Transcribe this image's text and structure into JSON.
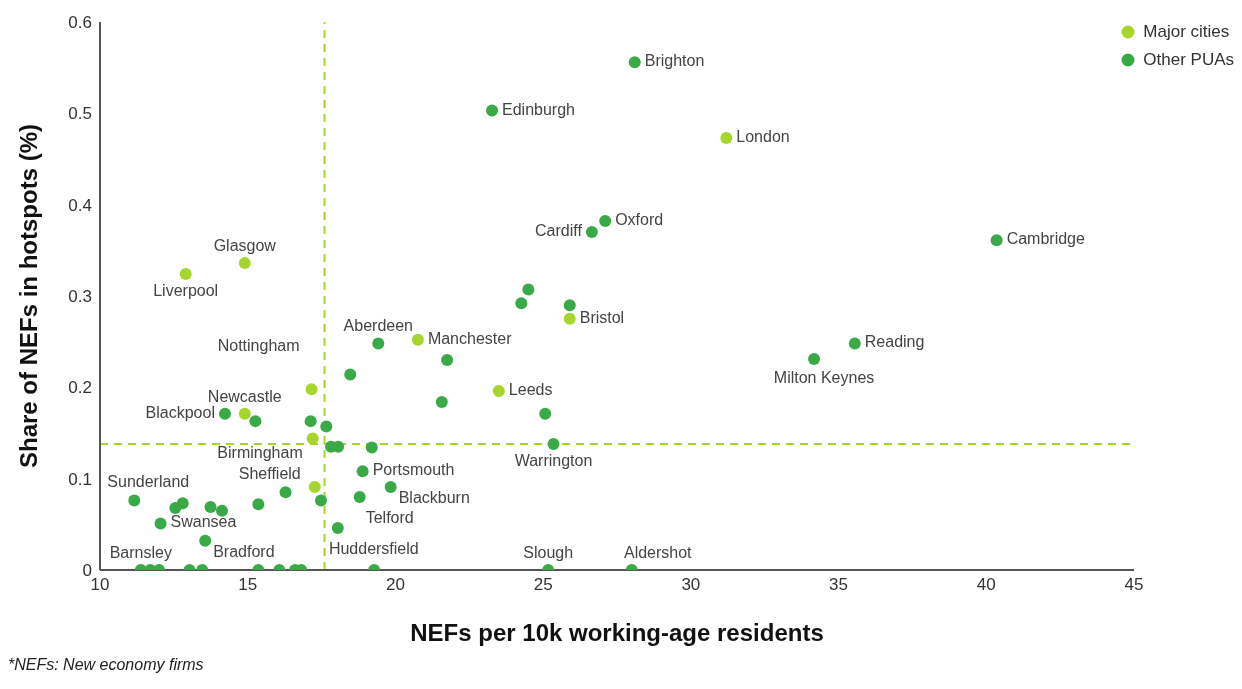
{
  "chart_data": {
    "type": "scatter",
    "xlabel": "NEFs per 10k working-age residents",
    "ylabel": "Share of NEFs in hotspots (%)",
    "xlim": [
      10,
      45
    ],
    "xticks": [
      10,
      15,
      20,
      25,
      30,
      35,
      40,
      45
    ],
    "ylim": [
      0,
      0.6
    ],
    "yticks": [
      0,
      0.1,
      0.2,
      0.3,
      0.4,
      0.5,
      0.6
    ],
    "grid": false,
    "legend": "top right",
    "marker": "circle",
    "ref_lines": [
      {
        "axis": "x",
        "value": 17.6,
        "color": "#a6d62c",
        "line_style": "dashed"
      },
      {
        "axis": "y",
        "value": 0.138,
        "color": "#a6d62c",
        "line_style": "dashed"
      }
    ],
    "annotations": [
      "*NEFs: New economy firms"
    ],
    "series": [
      {
        "name": "Major cities",
        "color": "#a6d62c",
        "x": [
          12.9,
          14.9,
          17.16,
          14.9,
          17.2,
          17.27,
          20.76,
          23.5,
          25.9,
          31.2
        ],
        "values": [
          0.324,
          0.336,
          0.198,
          0.171,
          0.144,
          0.091,
          0.252,
          0.196,
          0.275,
          0.473
        ],
        "value_labels": [
          "Liverpool",
          "Glasgow",
          "Nottingham",
          "Newcastle",
          "Birmingham",
          "Sheffield",
          "Manchester",
          "Leeds",
          "Bristol",
          "London"
        ]
      },
      {
        "name": "Other PUAs",
        "color": "#3aaa48",
        "x": [
          28.1,
          23.27,
          27.1,
          26.65,
          40.35,
          35.55,
          34.17,
          24.5,
          24.26,
          25.9,
          19.42,
          21.75,
          18.47,
          21.57,
          25.07,
          25.35,
          14.23,
          15.26,
          17.13,
          17.66,
          17.82,
          18.06,
          19.2,
          18.89,
          19.84,
          18.79,
          17.48,
          16.28,
          15.36,
          18.05,
          11.16,
          12.8,
          12.55,
          13.74,
          14.13,
          12.05,
          13.56,
          11.38,
          11.7,
          12.0,
          13.03,
          13.46,
          15.36,
          16.07,
          16.6,
          16.81,
          19.28,
          25.17,
          28.0
        ],
        "values": [
          0.556,
          0.503,
          0.382,
          0.37,
          0.361,
          0.248,
          0.231,
          0.307,
          0.292,
          0.29,
          0.248,
          0.23,
          0.214,
          0.184,
          0.171,
          0.138,
          0.171,
          0.163,
          0.163,
          0.157,
          0.135,
          0.135,
          0.134,
          0.108,
          0.091,
          0.08,
          0.076,
          0.085,
          0.072,
          0.046,
          0.076,
          0.073,
          0.068,
          0.069,
          0.065,
          0.051,
          0.032,
          0,
          0,
          0,
          0,
          0,
          0,
          0,
          0,
          0,
          0,
          0,
          0
        ],
        "value_labels": [
          "Brighton",
          "Edinburgh",
          "Oxford",
          "Cardiff",
          "Cambridge",
          "Reading",
          "Milton Keynes",
          null,
          null,
          null,
          "Aberdeen",
          null,
          null,
          null,
          null,
          "Warrington",
          "Blackpool",
          null,
          null,
          null,
          null,
          null,
          null,
          "Portsmouth",
          "Blackburn",
          "Telford",
          null,
          null,
          null,
          "Huddersfield",
          "Sunderland",
          null,
          null,
          null,
          null,
          "Swansea",
          "Bradford",
          "Barnsley",
          null,
          null,
          null,
          null,
          null,
          null,
          null,
          null,
          null,
          "Slough",
          "Aldershot"
        ]
      }
    ]
  }
}
